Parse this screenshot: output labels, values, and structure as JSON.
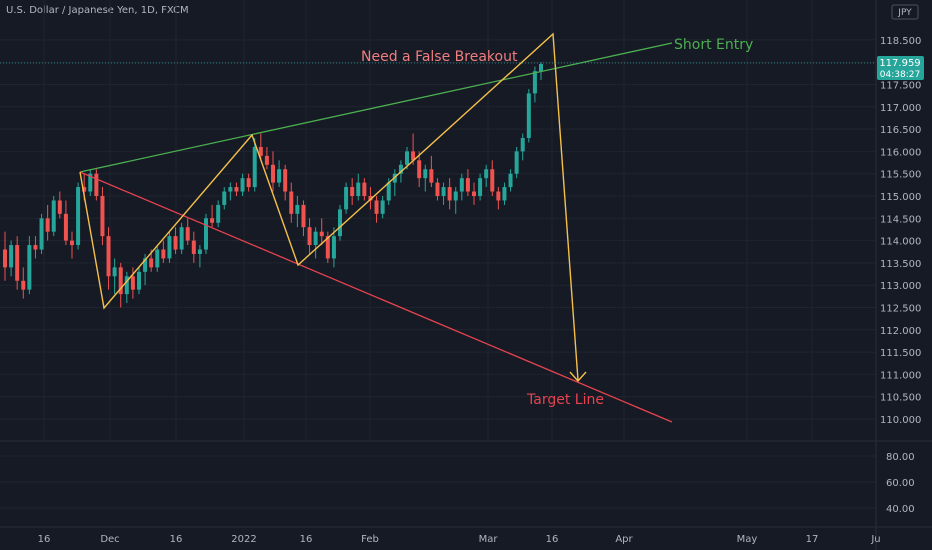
{
  "header": {
    "title": "U.S. Dollar / Japanese Yen, 1D, FXCM"
  },
  "currency_badge": "JPY",
  "price_tag": {
    "price": "117.959",
    "countdown": "04:38:27"
  },
  "colors": {
    "background": "#161a25",
    "grid": "#20242f",
    "up": "#26a69a",
    "down": "#ef5350",
    "green_line": "#4caf50",
    "red_line": "#e5434f",
    "zigzag": "#f5c04a"
  },
  "annotations": [
    {
      "id": "false-breakout",
      "text": "Need a False Breakout",
      "color": "#ef7e80"
    },
    {
      "id": "short-entry",
      "text": "Short Entry",
      "color": "#4caf50"
    },
    {
      "id": "target-line",
      "text": "Target Line",
      "color": "#e5434f"
    }
  ],
  "chart_data": {
    "type": "candlestick",
    "title": "U.S. Dollar / Japanese Yen, 1D, FXCM",
    "price_axis": {
      "ylim": [
        109.7,
        119.2
      ],
      "ticks": [
        110.0,
        110.5,
        111.0,
        111.5,
        112.0,
        112.5,
        113.0,
        113.5,
        114.0,
        114.5,
        115.0,
        115.5,
        116.0,
        116.5,
        117.0,
        117.5,
        118.0,
        118.5
      ],
      "tick_labels": [
        "110.000",
        "110.500",
        "111.000",
        "111.500",
        "112.000",
        "112.500",
        "113.000",
        "113.500",
        "114.000",
        "114.500",
        "115.000",
        "115.500",
        "116.000",
        "116.500",
        "117.000",
        "117.500",
        "118.000",
        "118.500"
      ]
    },
    "indicator_axis": {
      "ticks": [
        40.0,
        60.0,
        80.0
      ],
      "tick_labels": [
        "40.00",
        "60.00",
        "80.00"
      ],
      "ylim": [
        32,
        88
      ]
    },
    "x_axis": {
      "tick_labels": [
        "16",
        "Dec",
        "16",
        "2022",
        "16",
        "Feb",
        "Mar",
        "16",
        "Apr",
        "May",
        "17",
        "Ju"
      ]
    },
    "candles": [
      [
        113.8,
        114.2,
        113.1,
        113.4
      ],
      [
        113.4,
        114.0,
        113.2,
        113.9
      ],
      [
        113.9,
        114.1,
        112.9,
        113.1
      ],
      [
        113.1,
        113.4,
        112.7,
        112.9
      ],
      [
        112.9,
        114.1,
        112.8,
        113.9
      ],
      [
        113.9,
        114.1,
        113.6,
        113.8
      ],
      [
        113.8,
        114.6,
        113.7,
        114.5
      ],
      [
        114.5,
        114.8,
        114.0,
        114.2
      ],
      [
        114.2,
        115.0,
        114.1,
        114.9
      ],
      [
        114.9,
        115.1,
        114.5,
        114.6
      ],
      [
        114.6,
        114.9,
        113.9,
        114.0
      ],
      [
        114.0,
        114.2,
        113.6,
        113.9
      ],
      [
        113.9,
        115.3,
        113.8,
        115.2
      ],
      [
        115.2,
        115.5,
        114.9,
        115.1
      ],
      [
        115.1,
        115.6,
        115.0,
        115.5
      ],
      [
        115.5,
        115.6,
        114.9,
        115.0
      ],
      [
        115.0,
        115.2,
        113.9,
        114.1
      ],
      [
        114.1,
        114.3,
        112.9,
        113.2
      ],
      [
        113.2,
        113.6,
        112.8,
        113.4
      ],
      [
        113.4,
        113.5,
        112.5,
        112.8
      ],
      [
        112.8,
        113.3,
        112.6,
        113.2
      ],
      [
        113.2,
        113.4,
        112.7,
        112.9
      ],
      [
        112.9,
        113.4,
        112.8,
        113.3
      ],
      [
        113.3,
        113.7,
        113.0,
        113.6
      ],
      [
        113.6,
        113.8,
        113.3,
        113.4
      ],
      [
        113.4,
        113.9,
        113.3,
        113.8
      ],
      [
        113.8,
        114.0,
        113.5,
        113.6
      ],
      [
        113.6,
        114.2,
        113.5,
        114.1
      ],
      [
        114.1,
        114.3,
        113.7,
        113.8
      ],
      [
        113.8,
        114.4,
        113.7,
        114.3
      ],
      [
        114.3,
        114.5,
        113.9,
        114.0
      ],
      [
        114.0,
        114.2,
        113.5,
        113.7
      ],
      [
        113.7,
        113.9,
        113.4,
        113.8
      ],
      [
        113.8,
        114.6,
        113.7,
        114.5
      ],
      [
        114.5,
        114.8,
        114.3,
        114.4
      ],
      [
        114.4,
        114.9,
        114.3,
        114.8
      ],
      [
        114.8,
        115.2,
        114.7,
        115.1
      ],
      [
        115.1,
        115.3,
        114.9,
        115.2
      ],
      [
        115.2,
        115.3,
        115.0,
        115.1
      ],
      [
        115.1,
        115.5,
        115.0,
        115.4
      ],
      [
        115.4,
        115.5,
        115.1,
        115.2
      ],
      [
        115.2,
        116.3,
        115.1,
        116.1
      ],
      [
        116.1,
        116.4,
        115.8,
        115.9
      ],
      [
        115.9,
        116.1,
        115.6,
        115.7
      ],
      [
        115.7,
        116.0,
        115.1,
        115.3
      ],
      [
        115.3,
        115.8,
        115.2,
        115.6
      ],
      [
        115.6,
        115.7,
        114.9,
        115.1
      ],
      [
        115.1,
        115.3,
        114.4,
        114.6
      ],
      [
        114.6,
        115.0,
        114.3,
        114.8
      ],
      [
        114.8,
        114.9,
        114.1,
        114.3
      ],
      [
        114.3,
        114.5,
        113.7,
        113.9
      ],
      [
        113.9,
        114.3,
        113.6,
        114.2
      ],
      [
        114.2,
        114.5,
        113.9,
        114.1
      ],
      [
        114.1,
        114.2,
        113.5,
        113.6
      ],
      [
        113.6,
        114.3,
        113.4,
        114.1
      ],
      [
        114.1,
        114.8,
        114.0,
        114.7
      ],
      [
        114.7,
        115.3,
        114.6,
        115.2
      ],
      [
        115.2,
        115.4,
        114.8,
        115.0
      ],
      [
        115.0,
        115.5,
        114.9,
        115.3
      ],
      [
        115.3,
        115.4,
        114.9,
        115.0
      ],
      [
        115.0,
        115.2,
        114.7,
        114.9
      ],
      [
        114.9,
        115.0,
        114.4,
        114.6
      ],
      [
        114.6,
        115.0,
        114.5,
        114.9
      ],
      [
        114.9,
        115.4,
        114.8,
        115.3
      ],
      [
        115.3,
        115.6,
        115.0,
        115.5
      ],
      [
        115.5,
        115.8,
        115.3,
        115.7
      ],
      [
        115.7,
        116.1,
        115.6,
        116.0
      ],
      [
        116.0,
        116.4,
        115.7,
        115.8
      ],
      [
        115.8,
        116.0,
        115.2,
        115.4
      ],
      [
        115.4,
        115.7,
        115.1,
        115.6
      ],
      [
        115.6,
        115.9,
        115.2,
        115.3
      ],
      [
        115.3,
        115.4,
        114.9,
        115.0
      ],
      [
        115.0,
        115.3,
        114.8,
        115.2
      ],
      [
        115.2,
        115.4,
        114.7,
        114.9
      ],
      [
        114.9,
        115.2,
        114.6,
        115.1
      ],
      [
        115.1,
        115.5,
        114.9,
        115.4
      ],
      [
        115.4,
        115.6,
        115.0,
        115.1
      ],
      [
        115.1,
        115.3,
        114.8,
        115.0
      ],
      [
        115.0,
        115.5,
        114.9,
        115.4
      ],
      [
        115.4,
        115.7,
        115.2,
        115.6
      ],
      [
        115.6,
        115.8,
        115.0,
        115.1
      ],
      [
        115.1,
        115.2,
        114.7,
        114.9
      ],
      [
        114.9,
        115.3,
        114.8,
        115.2
      ],
      [
        115.2,
        115.6,
        115.1,
        115.5
      ],
      [
        115.5,
        116.1,
        115.4,
        116.0
      ],
      [
        116.0,
        116.4,
        115.8,
        116.3
      ],
      [
        116.3,
        117.4,
        116.2,
        117.3
      ],
      [
        117.3,
        117.9,
        117.1,
        117.8
      ],
      [
        117.8,
        118.0,
        117.6,
        117.96
      ]
    ]
  }
}
